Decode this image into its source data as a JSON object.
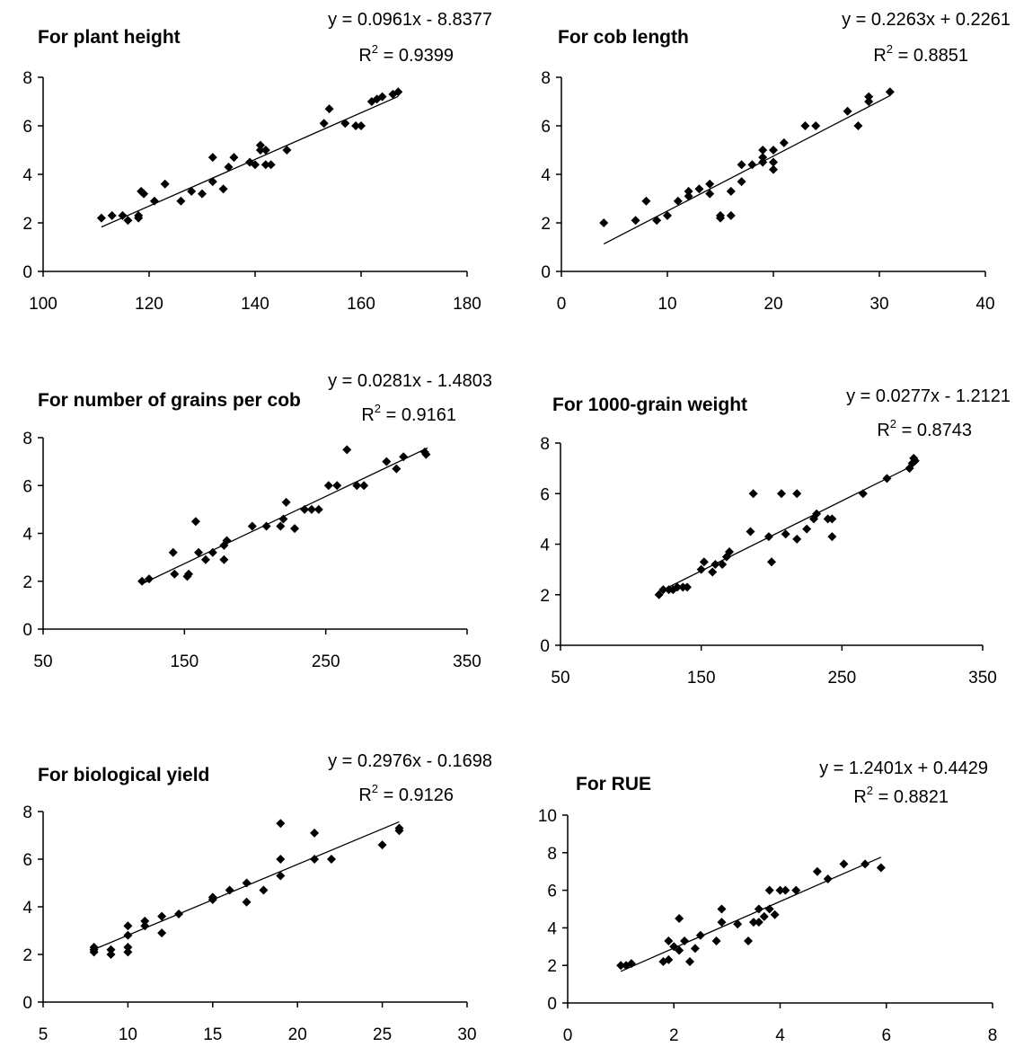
{
  "chart_data": [
    {
      "type": "scatter",
      "title": "For plant height",
      "equation": "y = 0.0961x - 8.8377",
      "r2_prefix": "R",
      "r2_sup": "2",
      "r2_value": " = 0.9399",
      "xlim": [
        100,
        180
      ],
      "xticks": [
        "100",
        "120",
        "140",
        "160",
        "180"
      ],
      "ylim": [
        0,
        8
      ],
      "yticks": [
        "0",
        "2",
        "4",
        "6",
        "8"
      ],
      "slope": 0.0961,
      "intercept": -8.8377,
      "trend_x": [
        111,
        167
      ],
      "points": [
        [
          111,
          2.2
        ],
        [
          113,
          2.3
        ],
        [
          115,
          2.3
        ],
        [
          116,
          2.1
        ],
        [
          118,
          2.2
        ],
        [
          118,
          2.3
        ],
        [
          119,
          3.2
        ],
        [
          118.5,
          3.3
        ],
        [
          121,
          2.9
        ],
        [
          123,
          3.6
        ],
        [
          126,
          2.9
        ],
        [
          128,
          3.3
        ],
        [
          130,
          3.2
        ],
        [
          132,
          3.7
        ],
        [
          132,
          4.7
        ],
        [
          134,
          3.4
        ],
        [
          135,
          4.3
        ],
        [
          136,
          4.7
        ],
        [
          139,
          4.5
        ],
        [
          140,
          4.4
        ],
        [
          141,
          5.2
        ],
        [
          141,
          5.0
        ],
        [
          142,
          4.4
        ],
        [
          142,
          5.0
        ],
        [
          143,
          4.4
        ],
        [
          146,
          5.0
        ],
        [
          153,
          6.1
        ],
        [
          154,
          6.7
        ],
        [
          157,
          6.1
        ],
        [
          159,
          6.0
        ],
        [
          160,
          6.0
        ],
        [
          162,
          7.0
        ],
        [
          163,
          7.1
        ],
        [
          164,
          7.2
        ],
        [
          166,
          7.3
        ],
        [
          167,
          7.4
        ]
      ]
    },
    {
      "type": "scatter",
      "title": "For cob length",
      "equation": "y = 0.2263x + 0.2261",
      "r2_prefix": "R",
      "r2_sup": "2",
      "r2_value": " = 0.8851",
      "xlim": [
        0,
        40
      ],
      "xticks": [
        "0",
        "10",
        "20",
        "30",
        "40"
      ],
      "ylim": [
        0,
        8
      ],
      "yticks": [
        "0",
        "2",
        "4",
        "6",
        "8"
      ],
      "slope": 0.2263,
      "intercept": 0.2261,
      "trend_x": [
        4,
        31
      ],
      "points": [
        [
          4,
          2.0
        ],
        [
          7,
          2.1
        ],
        [
          8,
          2.9
        ],
        [
          9,
          2.1
        ],
        [
          10,
          2.3
        ],
        [
          11,
          2.9
        ],
        [
          12,
          3.1
        ],
        [
          12,
          3.3
        ],
        [
          13,
          3.4
        ],
        [
          14,
          3.2
        ],
        [
          14,
          3.6
        ],
        [
          15,
          2.2
        ],
        [
          15,
          2.3
        ],
        [
          16,
          2.3
        ],
        [
          16,
          3.3
        ],
        [
          17,
          3.7
        ],
        [
          17,
          4.4
        ],
        [
          18,
          4.4
        ],
        [
          19,
          4.5
        ],
        [
          19,
          4.7
        ],
        [
          19,
          5.0
        ],
        [
          20,
          4.2
        ],
        [
          20,
          4.5
        ],
        [
          20,
          5.0
        ],
        [
          21,
          5.3
        ],
        [
          23,
          6.0
        ],
        [
          24,
          6.0
        ],
        [
          27,
          6.6
        ],
        [
          28,
          6.0
        ],
        [
          29,
          7.0
        ],
        [
          29,
          7.2
        ],
        [
          31,
          7.4
        ]
      ]
    },
    {
      "type": "scatter",
      "title": "For number of grains per cob",
      "equation": "y = 0.0281x - 1.4803",
      "r2_prefix": "R",
      "r2_sup": "2",
      "r2_value": " = 0.9161",
      "xlim": [
        50,
        350
      ],
      "xticks": [
        "50",
        "150",
        "250",
        "350"
      ],
      "ylim": [
        0,
        8
      ],
      "yticks": [
        "0",
        "2",
        "4",
        "6",
        "8"
      ],
      "slope": 0.0281,
      "intercept": -1.4803,
      "trend_x": [
        120,
        322
      ],
      "points": [
        [
          120,
          2.0
        ],
        [
          125,
          2.1
        ],
        [
          142,
          3.2
        ],
        [
          143,
          2.3
        ],
        [
          152,
          2.2
        ],
        [
          153,
          2.3
        ],
        [
          158,
          4.5
        ],
        [
          160,
          3.2
        ],
        [
          165,
          2.9
        ],
        [
          170,
          3.2
        ],
        [
          178,
          2.9
        ],
        [
          178,
          3.5
        ],
        [
          180,
          3.7
        ],
        [
          198,
          4.3
        ],
        [
          208,
          4.3
        ],
        [
          218,
          4.3
        ],
        [
          220,
          4.6
        ],
        [
          222,
          5.3
        ],
        [
          228,
          4.2
        ],
        [
          235,
          5.0
        ],
        [
          240,
          5.0
        ],
        [
          245,
          5.0
        ],
        [
          252,
          6.0
        ],
        [
          258,
          6.0
        ],
        [
          265,
          7.5
        ],
        [
          272,
          6.0
        ],
        [
          277,
          6.0
        ],
        [
          293,
          7.0
        ],
        [
          300,
          6.7
        ],
        [
          305,
          7.2
        ],
        [
          320,
          7.4
        ],
        [
          321,
          7.3
        ]
      ]
    },
    {
      "type": "scatter",
      "title": "For 1000-grain weight",
      "equation": "y = 0.0277x - 1.2121",
      "r2_prefix": "R",
      "r2_sup": "2",
      "r2_value": " = 0.8743",
      "xlim": [
        50,
        350
      ],
      "xticks": [
        "50",
        "150",
        "250",
        "350"
      ],
      "ylim": [
        0,
        8
      ],
      "yticks": [
        "0",
        "2",
        "4",
        "6",
        "8"
      ],
      "slope": 0.0277,
      "intercept": -1.2121,
      "trend_x": [
        120,
        302
      ],
      "points": [
        [
          120,
          2.0
        ],
        [
          123,
          2.2
        ],
        [
          127,
          2.2
        ],
        [
          130,
          2.2
        ],
        [
          133,
          2.3
        ],
        [
          137,
          2.3
        ],
        [
          140,
          2.3
        ],
        [
          150,
          3.0
        ],
        [
          152,
          3.3
        ],
        [
          158,
          2.9
        ],
        [
          160,
          3.2
        ],
        [
          165,
          3.2
        ],
        [
          168,
          3.5
        ],
        [
          170,
          3.7
        ],
        [
          185,
          4.5
        ],
        [
          187,
          6.0
        ],
        [
          198,
          4.3
        ],
        [
          200,
          3.3
        ],
        [
          207,
          6.0
        ],
        [
          210,
          4.4
        ],
        [
          218,
          4.2
        ],
        [
          218,
          6.0
        ],
        [
          225,
          4.6
        ],
        [
          230,
          5.0
        ],
        [
          232,
          5.2
        ],
        [
          240,
          5.0
        ],
        [
          243,
          5.0
        ],
        [
          243,
          4.3
        ],
        [
          265,
          6.0
        ],
        [
          282,
          6.6
        ],
        [
          298,
          7.0
        ],
        [
          300,
          7.2
        ],
        [
          301,
          7.4
        ],
        [
          302,
          7.3
        ]
      ]
    },
    {
      "type": "scatter",
      "title": "For biological yield",
      "equation": "y = 0.2976x - 0.1698",
      "r2_prefix": "R",
      "r2_sup": "2",
      "r2_value": " = 0.9126",
      "xlim": [
        5,
        30
      ],
      "xticks": [
        "5",
        "10",
        "15",
        "20",
        "25",
        "30"
      ],
      "ylim": [
        0,
        8
      ],
      "yticks": [
        "0",
        "2",
        "4",
        "6",
        "8"
      ],
      "slope": 0.2976,
      "intercept": -0.1698,
      "trend_x": [
        8,
        26
      ],
      "points": [
        [
          8,
          2.1
        ],
        [
          8,
          2.2
        ],
        [
          8,
          2.3
        ],
        [
          9,
          2.0
        ],
        [
          9,
          2.2
        ],
        [
          10,
          2.1
        ],
        [
          10,
          2.3
        ],
        [
          10,
          2.8
        ],
        [
          10,
          3.2
        ],
        [
          11,
          3.2
        ],
        [
          11,
          3.4
        ],
        [
          12,
          2.9
        ],
        [
          12,
          3.6
        ],
        [
          13,
          3.7
        ],
        [
          15,
          4.3
        ],
        [
          15,
          4.4
        ],
        [
          16,
          4.7
        ],
        [
          17,
          4.2
        ],
        [
          17,
          5.0
        ],
        [
          18,
          4.7
        ],
        [
          19,
          5.3
        ],
        [
          19,
          6.0
        ],
        [
          19,
          7.5
        ],
        [
          21,
          6.0
        ],
        [
          21,
          7.1
        ],
        [
          22,
          6.0
        ],
        [
          25,
          6.6
        ],
        [
          26,
          7.2
        ],
        [
          26,
          7.3
        ]
      ]
    },
    {
      "type": "scatter",
      "title": "For RUE",
      "equation": "y = 1.2401x + 0.4429",
      "r2_prefix": "R",
      "r2_sup": "2",
      "r2_value": " = 0.8821",
      "xlim": [
        0,
        8
      ],
      "xticks": [
        "0",
        "2",
        "4",
        "6",
        "8"
      ],
      "ylim": [
        0,
        10
      ],
      "yticks": [
        "0",
        "2",
        "4",
        "6",
        "8",
        "10"
      ],
      "slope": 1.2401,
      "intercept": 0.4429,
      "trend_x": [
        1.0,
        5.9
      ],
      "points": [
        [
          1.0,
          2.0
        ],
        [
          1.1,
          2.0
        ],
        [
          1.2,
          2.1
        ],
        [
          1.8,
          2.2
        ],
        [
          1.9,
          2.3
        ],
        [
          1.9,
          3.3
        ],
        [
          2.0,
          3.0
        ],
        [
          2.1,
          2.8
        ],
        [
          2.1,
          4.5
        ],
        [
          2.2,
          3.3
        ],
        [
          2.3,
          2.2
        ],
        [
          2.4,
          2.9
        ],
        [
          2.5,
          3.6
        ],
        [
          2.8,
          3.3
        ],
        [
          2.9,
          4.3
        ],
        [
          2.9,
          5.0
        ],
        [
          3.2,
          4.2
        ],
        [
          3.4,
          3.3
        ],
        [
          3.5,
          4.3
        ],
        [
          3.6,
          4.3
        ],
        [
          3.6,
          5.0
        ],
        [
          3.7,
          4.6
        ],
        [
          3.8,
          5.0
        ],
        [
          3.8,
          6.0
        ],
        [
          3.9,
          4.7
        ],
        [
          4.0,
          6.0
        ],
        [
          4.1,
          6.0
        ],
        [
          4.3,
          6.0
        ],
        [
          4.7,
          7.0
        ],
        [
          4.9,
          6.6
        ],
        [
          5.2,
          7.4
        ],
        [
          5.6,
          7.4
        ],
        [
          5.9,
          7.2
        ]
      ]
    }
  ]
}
